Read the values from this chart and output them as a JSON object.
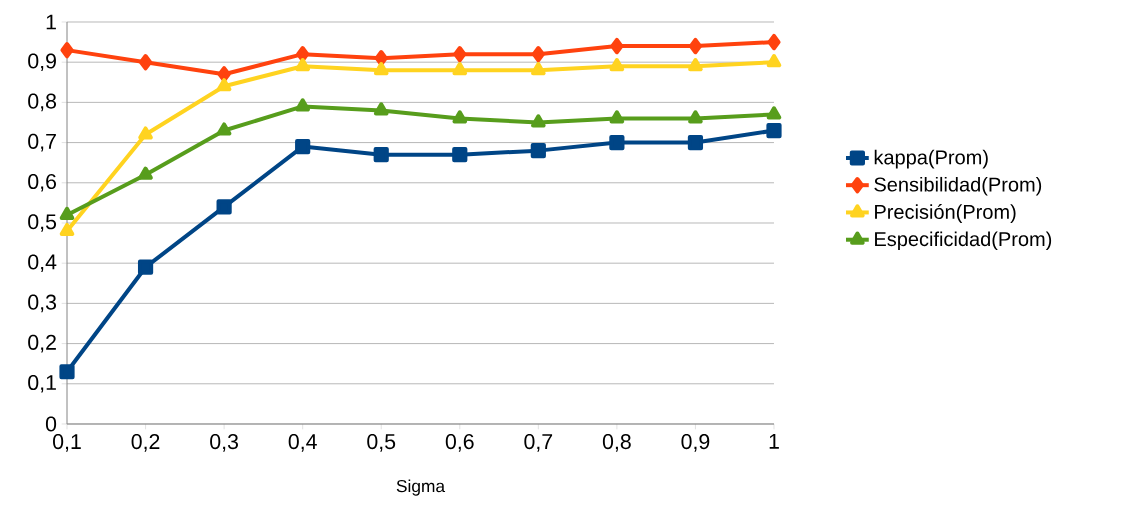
{
  "chart_data": {
    "type": "line",
    "xlabel": "Sigma",
    "x": [
      0.1,
      0.2,
      0.3,
      0.4,
      0.5,
      0.6,
      0.7,
      0.8,
      0.9,
      1
    ],
    "series": [
      {
        "name": "kappa(Prom)",
        "color": "#004586",
        "marker": "square",
        "values": [
          0.13,
          0.39,
          0.54,
          0.69,
          0.67,
          0.67,
          0.68,
          0.7,
          0.7,
          0.73
        ]
      },
      {
        "name": "Sensibilidad(Prom)",
        "color": "#ff420e",
        "marker": "diamond",
        "values": [
          0.93,
          0.9,
          0.87,
          0.92,
          0.91,
          0.92,
          0.92,
          0.94,
          0.94,
          0.95
        ]
      },
      {
        "name": "Precisión(Prom)",
        "color": "#ffd320",
        "marker": "triangle down",
        "values": [
          0.48,
          0.72,
          0.84,
          0.89,
          0.88,
          0.88,
          0.88,
          0.89,
          0.89,
          0.9
        ]
      },
      {
        "name": "Especificidad(Prom)",
        "color": "#579d1c",
        "marker": "triangle",
        "values": [
          0.52,
          0.62,
          0.73,
          0.79,
          0.78,
          0.76,
          0.75,
          0.76,
          0.76,
          0.77
        ]
      }
    ],
    "xlim": [
      0.1,
      1
    ],
    "ylim": [
      0,
      1
    ],
    "xticks": [
      {
        "value": 0.1,
        "label": "0,1"
      },
      {
        "value": 0.2,
        "label": "0,2"
      },
      {
        "value": 0.3,
        "label": "0,3"
      },
      {
        "value": 0.4,
        "label": "0,4"
      },
      {
        "value": 0.5,
        "label": "0,5"
      },
      {
        "value": 0.6,
        "label": "0,6"
      },
      {
        "value": 0.7,
        "label": "0,7"
      },
      {
        "value": 0.8,
        "label": "0,8"
      },
      {
        "value": 0.9,
        "label": "0,9"
      },
      1
    ],
    "yticks": [
      0,
      {
        "value": 0.1,
        "label": "0,1"
      },
      {
        "value": 0.2,
        "label": "0,2"
      },
      {
        "value": 0.3,
        "label": "0,3"
      },
      {
        "value": 0.4,
        "label": "0,4"
      },
      {
        "value": 0.5,
        "label": "0,5"
      },
      {
        "value": 0.6,
        "label": "0,6"
      },
      {
        "value": 0.7,
        "label": "0,7"
      },
      {
        "value": 0.8,
        "label": "0,8"
      },
      {
        "value": 0.9,
        "label": "0,9"
      },
      1
    ],
    "grid": "y",
    "legend": "right",
    "line_style": "solid"
  }
}
